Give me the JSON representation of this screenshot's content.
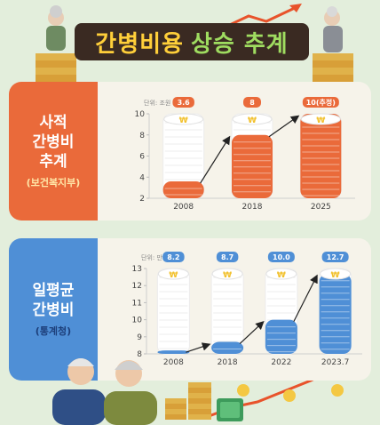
{
  "header": {
    "title_part1": "간병비용",
    "title_part2": "상승 추계"
  },
  "panel1": {
    "side_title": "사적\n간병비\n추계",
    "source": "(보건복지부)"
  },
  "panel2": {
    "side_title": "일평균\n간병비",
    "source": "(통계청)"
  },
  "colors": {
    "orange": "#ea6a3a",
    "blue": "#4f8fd6",
    "coin_white": "#ffffff",
    "background": "#e3eedc",
    "panel": "#f6f3ea",
    "banner": "#3a2a22"
  },
  "chart_data": [
    {
      "type": "bar",
      "unit_label": "단위: 조원",
      "categories": [
        "2008",
        "2018",
        "2025"
      ],
      "values": [
        3.6,
        8,
        10
      ],
      "data_labels": [
        "3.6",
        "8",
        "10(추정)"
      ],
      "yticks": [
        2,
        4,
        6,
        8,
        10
      ],
      "ylim": [
        2,
        10
      ],
      "bar_color": "#ea6a3a"
    },
    {
      "type": "bar",
      "unit_label": "단위: 만원",
      "categories": [
        "2008",
        "2018",
        "2022",
        "2023.7"
      ],
      "values": [
        8.2,
        8.7,
        10.0,
        12.7
      ],
      "data_labels": [
        "8.2",
        "8.7",
        "10.0",
        "12.7"
      ],
      "yticks": [
        8,
        9,
        10,
        11,
        12,
        13
      ],
      "ylim": [
        8,
        13
      ],
      "bar_color": "#4f8fd6"
    }
  ]
}
